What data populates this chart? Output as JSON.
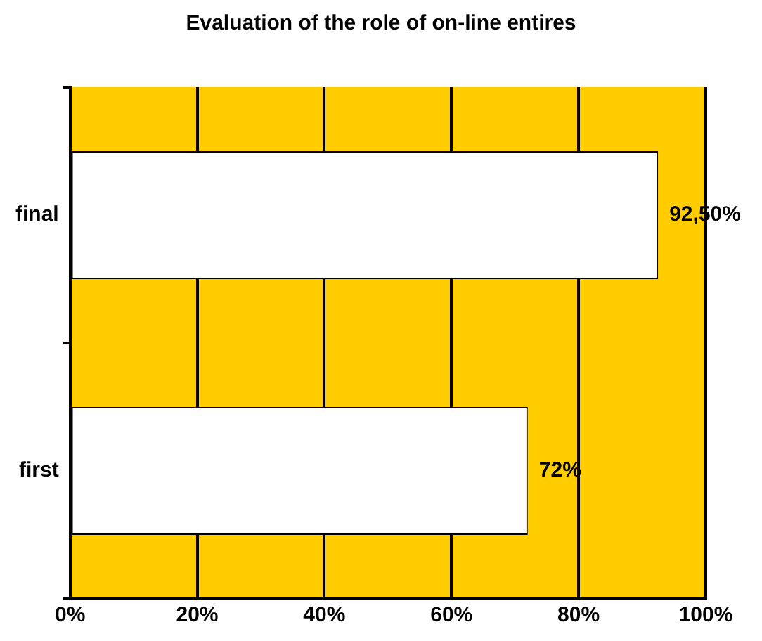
{
  "chart_data": {
    "type": "bar",
    "orientation": "horizontal",
    "title": "Evaluation of the role of on-line entires",
    "categories": [
      "final",
      "first"
    ],
    "values": [
      92.5,
      72
    ],
    "color": "#ffffff",
    "value_labels": [
      "92,50%",
      "72%"
    ],
    "xlim": [
      0,
      100
    ],
    "xticks": [
      {
        "value": 0,
        "label": "0%"
      },
      {
        "value": 20,
        "label": "20%"
      },
      {
        "value": 40,
        "label": "40%"
      },
      {
        "value": 60,
        "label": "60%"
      },
      {
        "value": 80,
        "label": "80%"
      },
      {
        "value": 100,
        "label": "100%"
      }
    ],
    "grid": "x",
    "legend": false
  }
}
